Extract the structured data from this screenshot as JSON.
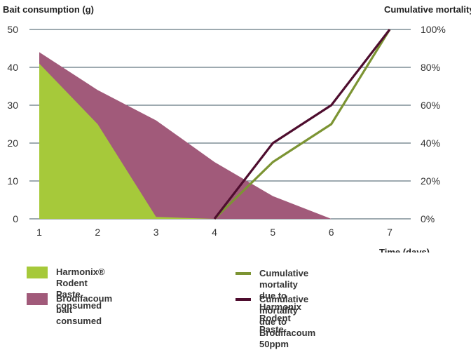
{
  "chart_data": {
    "type": "area",
    "ylabel_left": "Bait consumption (g)",
    "ylabel_right": "Cumulative mortality",
    "xlabel": "Time (days)",
    "x": [
      1,
      2,
      3,
      4,
      5,
      6,
      7
    ],
    "x_tick_labels": [
      "1",
      "2",
      "3",
      "4",
      "5",
      "6",
      "7"
    ],
    "ylim_left": [
      0,
      50
    ],
    "yticks_left": [
      "0",
      "10",
      "20",
      "30",
      "40",
      "50"
    ],
    "ylim_right": [
      0,
      100
    ],
    "yticks_right": [
      "0%",
      "20%",
      "40%",
      "60%",
      "80%",
      "100%"
    ],
    "grid": true,
    "series": [
      {
        "name": "Brodifacoum bait consumed",
        "kind": "area",
        "axis": "left",
        "color": "#a15a7a",
        "x": [
          1,
          2,
          3,
          4,
          5,
          6
        ],
        "values": [
          44,
          34,
          26,
          15,
          6,
          0
        ]
      },
      {
        "name": "Harmonix® Rodent Paste consumed",
        "kind": "area",
        "axis": "left",
        "color": "#a6c93a",
        "x": [
          1,
          2,
          3,
          4
        ],
        "values": [
          41,
          25,
          0.5,
          0
        ]
      },
      {
        "name": "Cumulative mortality due to Harmonix Rodent Paste",
        "kind": "line",
        "axis": "right",
        "color": "#7c9433",
        "x": [
          4,
          5,
          6,
          7
        ],
        "values": [
          0,
          30,
          50,
          100
        ]
      },
      {
        "name": "Cumulative mortality due to Brodifacoum 50ppm",
        "kind": "line",
        "axis": "right",
        "color": "#4e0d2e",
        "x": [
          4,
          5,
          6,
          7
        ],
        "values": [
          0,
          40,
          60,
          100
        ]
      }
    ]
  },
  "legend": {
    "harmonix_area": "Harmonix® Rodent Paste consumed",
    "brodifacoum_area": "Brodifacoum bait consumed",
    "harmonix_line_1": "Cumulative mortality due to",
    "harmonix_line_2": "Harmonix Rodent Paste",
    "brodifacoum_line_1": "Cumulative mortality due to",
    "brodifacoum_line_2": "Brodifacoum 50ppm"
  }
}
